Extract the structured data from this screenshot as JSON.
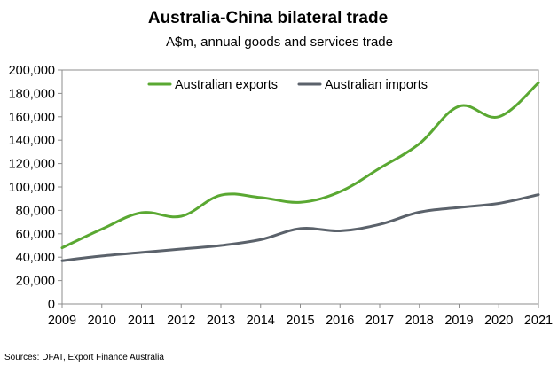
{
  "chart_data": {
    "type": "line",
    "title": "Australia-China bilateral trade",
    "subtitle": "A$m, annual goods and services trade",
    "x": [
      2009,
      2010,
      2011,
      2012,
      2013,
      2014,
      2015,
      2016,
      2017,
      2018,
      2019,
      2020,
      2021
    ],
    "x_ticks": [
      "2009",
      "2010",
      "2011",
      "2012",
      "2013",
      "2014",
      "2015",
      "2016",
      "2017",
      "2018",
      "2019",
      "2020",
      "2021"
    ],
    "ylim": [
      0,
      200000
    ],
    "y_ticks": [
      "0",
      "20,000",
      "40,000",
      "60,000",
      "80,000",
      "100,000",
      "120,000",
      "140,000",
      "160,000",
      "180,000",
      "200,000"
    ],
    "y_tick_values": [
      0,
      20000,
      40000,
      60000,
      80000,
      100000,
      120000,
      140000,
      160000,
      180000,
      200000
    ],
    "grid": false,
    "legend_position": "top",
    "series": [
      {
        "name": "Australian exports",
        "color": "#5aa832",
        "values": [
          48000,
          64000,
          78000,
          75000,
          93000,
          91000,
          87000,
          96000,
          116000,
          137000,
          169000,
          160000,
          189000
        ]
      },
      {
        "name": "Australian imports",
        "color": "#5b626b",
        "values": [
          37000,
          41000,
          44000,
          47000,
          50000,
          55000,
          64500,
          62500,
          68000,
          78500,
          82500,
          86000,
          93500
        ]
      }
    ]
  },
  "source": "Sources: DFAT, Export Finance Australia"
}
